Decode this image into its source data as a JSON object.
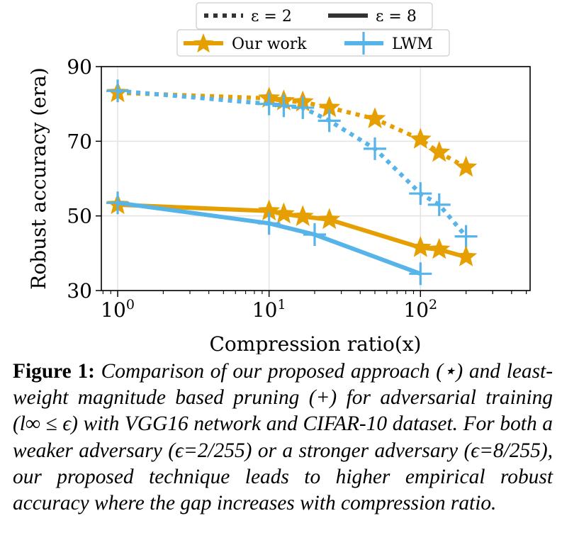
{
  "chart_data": {
    "type": "line",
    "xlabel": "Compression ratio(x)",
    "ylabel": "Robust accuracy (era)",
    "xscale": "log",
    "xlim": [
      0.78,
      530
    ],
    "ylim": [
      30,
      90
    ],
    "yticks": [
      30,
      50,
      70,
      90
    ],
    "xticks": [
      "10^0",
      "10^1",
      "10^2"
    ],
    "grid": true,
    "legend_style": [
      {
        "key": "eps2",
        "label": "ε = 2",
        "linestyle": "dotted"
      },
      {
        "key": "eps8",
        "label": "ε = 8",
        "linestyle": "solid"
      }
    ],
    "legend_method": [
      {
        "key": "ours",
        "label": "Our work",
        "marker": "star",
        "color": "#e69f00"
      },
      {
        "key": "lwm",
        "label": "LWM",
        "marker": "plus",
        "color": "#56b4e9"
      }
    ],
    "legend_position": "top-center",
    "series": [
      {
        "method": "ours",
        "style": "eps2",
        "color": "#e69f00",
        "marker": "star",
        "x": [
          1,
          10,
          12.5,
          16.7,
          25,
          50,
          100,
          133,
          200
        ],
        "y": [
          83,
          81.5,
          80.8,
          80.5,
          79,
          76,
          70.5,
          67,
          63
        ]
      },
      {
        "method": "lwm",
        "style": "eps2",
        "color": "#56b4e9",
        "marker": "plus",
        "x": [
          1,
          10,
          12.5,
          16.7,
          25,
          50,
          100,
          133,
          200
        ],
        "y": [
          83.5,
          80,
          79.5,
          79,
          75.5,
          68,
          56,
          53,
          44.5
        ]
      },
      {
        "method": "ours",
        "style": "eps8",
        "color": "#e69f00",
        "marker": "star",
        "x": [
          1,
          10,
          12.5,
          16.7,
          25,
          100,
          133,
          200
        ],
        "y": [
          53,
          51.3,
          50.5,
          49.8,
          49,
          41.5,
          41,
          39
        ]
      },
      {
        "method": "lwm",
        "style": "eps8",
        "color": "#56b4e9",
        "marker": "plus",
        "x": [
          1,
          10,
          20,
          100
        ],
        "y": [
          53.5,
          48,
          45,
          34.5
        ]
      }
    ]
  },
  "caption": {
    "label": "Figure 1:",
    "text": "Comparison of our proposed approach (⋆) and least-weight magnitude based pruning (+) for adversarial training (l∞ ≤ ϵ) with VGG16 network and CIFAR-10 dataset. For both a weaker adversary (ϵ=2/255) or a stronger adversary (ϵ=8/255), our proposed technique leads to higher empirical robust accuracy where the gap increases with compression ratio."
  }
}
